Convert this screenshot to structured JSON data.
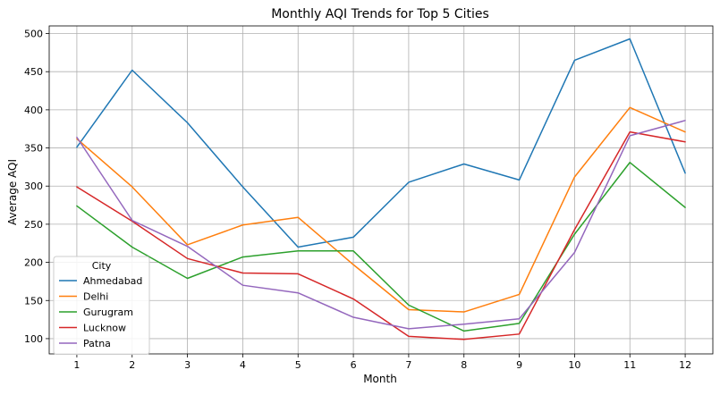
{
  "chart_data": {
    "type": "line",
    "title": "Monthly AQI Trends for Top 5 Cities",
    "xlabel": "Month",
    "ylabel": "Average AQI",
    "x": [
      1,
      2,
      3,
      4,
      5,
      6,
      7,
      8,
      9,
      10,
      11,
      12
    ],
    "xlim": [
      0.5,
      12.5
    ],
    "ylim": [
      80,
      510
    ],
    "yticks": [
      100,
      150,
      200,
      250,
      300,
      350,
      400,
      450,
      500
    ],
    "grid": true,
    "legend": {
      "title": "City",
      "placement": "lower-left"
    },
    "series": [
      {
        "name": "Ahmedabad",
        "color": "#1f77b4",
        "values": [
          351,
          452,
          383,
          299,
          220,
          233,
          305,
          329,
          308,
          465,
          493,
          317
        ]
      },
      {
        "name": "Delhi",
        "color": "#ff7f0e",
        "values": [
          362,
          299,
          223,
          249,
          259,
          197,
          138,
          135,
          158,
          312,
          403,
          371
        ]
      },
      {
        "name": "Gurugram",
        "color": "#2ca02c",
        "values": [
          274,
          220,
          179,
          207,
          215,
          215,
          144,
          110,
          120,
          237,
          331,
          272
        ]
      },
      {
        "name": "Lucknow",
        "color": "#d62728",
        "values": [
          299,
          254,
          205,
          186,
          185,
          152,
          103,
          99,
          106,
          243,
          371,
          358
        ]
      },
      {
        "name": "Patna",
        "color": "#9467bd",
        "values": [
          364,
          255,
          221,
          170,
          160,
          128,
          113,
          119,
          126,
          213,
          366,
          386
        ]
      }
    ]
  }
}
